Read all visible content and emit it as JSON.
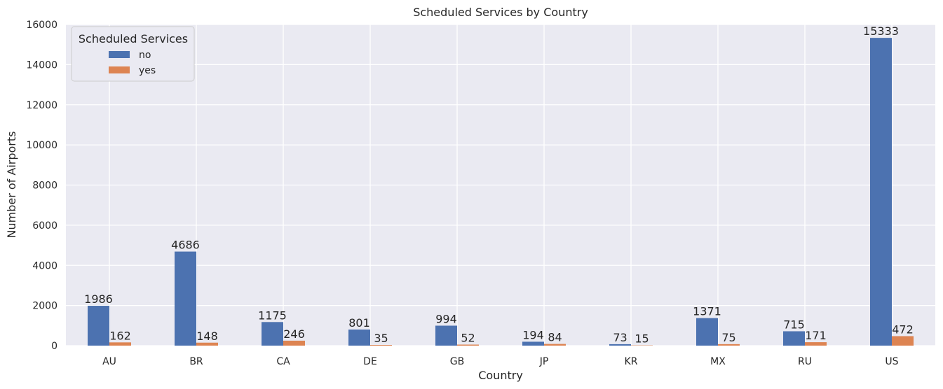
{
  "chart_data": {
    "type": "bar",
    "title": "Scheduled Services by Country",
    "xlabel": "Country",
    "ylabel": "Number of Airports",
    "categories": [
      "AU",
      "BR",
      "CA",
      "DE",
      "GB",
      "JP",
      "KR",
      "MX",
      "RU",
      "US"
    ],
    "series": [
      {
        "name": "no",
        "color": "#4c72b0",
        "values": [
          1986,
          4686,
          1175,
          801,
          994,
          194,
          73,
          1371,
          715,
          15333
        ]
      },
      {
        "name": "yes",
        "color": "#dd8452",
        "values": [
          162,
          148,
          246,
          35,
          52,
          84,
          15,
          75,
          171,
          472
        ]
      }
    ],
    "ylim": [
      0,
      16000
    ],
    "yticks": [
      0,
      2000,
      4000,
      6000,
      8000,
      10000,
      12000,
      14000,
      16000
    ],
    "grid": true,
    "legend": {
      "title": "Scheduled Services",
      "placement": "top-left"
    },
    "background": "#eaeaf2",
    "grid_color": "#ffffff"
  }
}
